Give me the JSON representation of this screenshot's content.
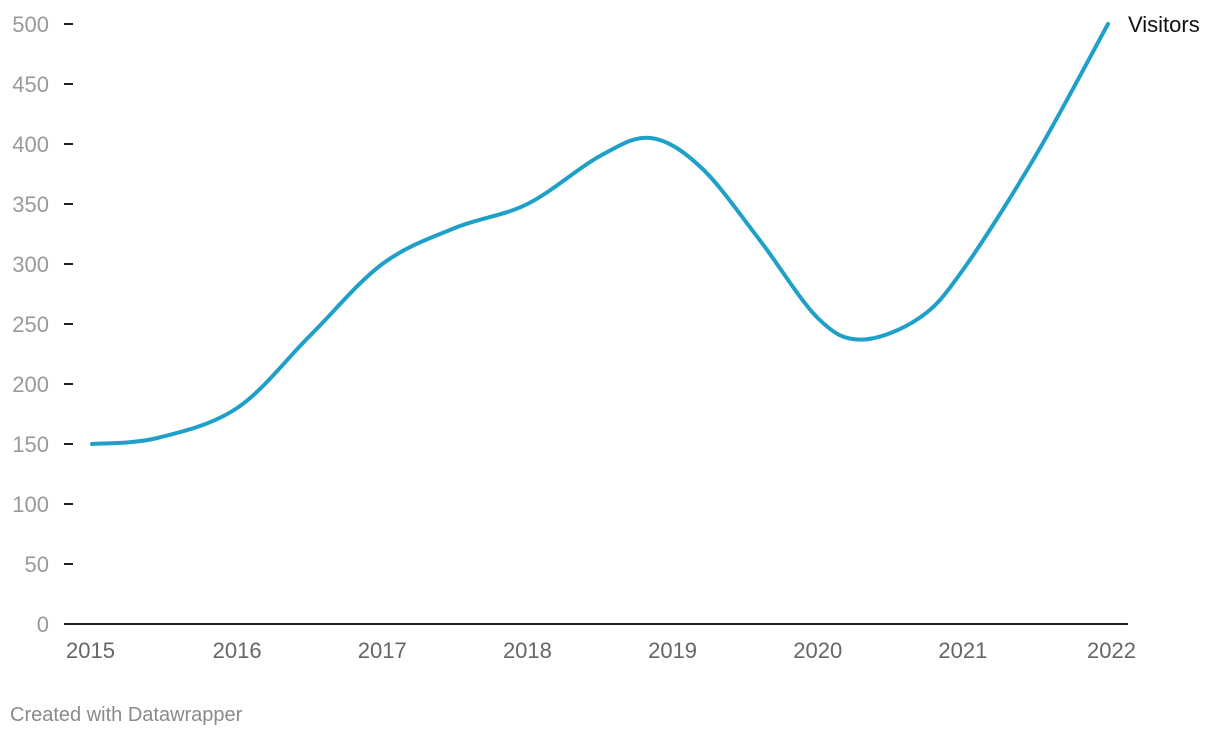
{
  "chart_data": {
    "type": "line",
    "title": "",
    "xlabel": "",
    "ylabel": "",
    "x": [
      2015,
      2016,
      2017,
      2018,
      2019,
      2020,
      2021,
      2022
    ],
    "x_tick_labels": [
      "2015",
      "2016",
      "2017",
      "2018",
      "2019",
      "2020",
      "2021",
      "2022"
    ],
    "y_ticks": [
      0,
      50,
      100,
      150,
      200,
      250,
      300,
      350,
      400,
      450,
      500
    ],
    "y_tick_labels": [
      "0",
      "50",
      "100",
      "150",
      "200",
      "250",
      "300",
      "350",
      "400",
      "450",
      "500"
    ],
    "ylim": [
      0,
      500
    ],
    "xlim": [
      2015,
      2022
    ],
    "grid": false,
    "curve": "smooth",
    "series": [
      {
        "name": "Visitors",
        "values": [
          [
            2015.0,
            150
          ],
          [
            2015.45,
            155
          ],
          [
            2016.0,
            180
          ],
          [
            2016.5,
            240
          ],
          [
            2017.0,
            300
          ],
          [
            2017.5,
            330
          ],
          [
            2018.0,
            350
          ],
          [
            2018.5,
            390
          ],
          [
            2018.85,
            405
          ],
          [
            2019.2,
            380
          ],
          [
            2019.6,
            320
          ],
          [
            2020.0,
            255
          ],
          [
            2020.3,
            237
          ],
          [
            2020.7,
            255
          ],
          [
            2021.0,
            295
          ],
          [
            2021.5,
            390
          ],
          [
            2022.0,
            500
          ]
        ],
        "color": "#1ea0c8",
        "label_position": "end"
      }
    ]
  },
  "footer": {
    "credit": "Created with Datawrapper"
  }
}
